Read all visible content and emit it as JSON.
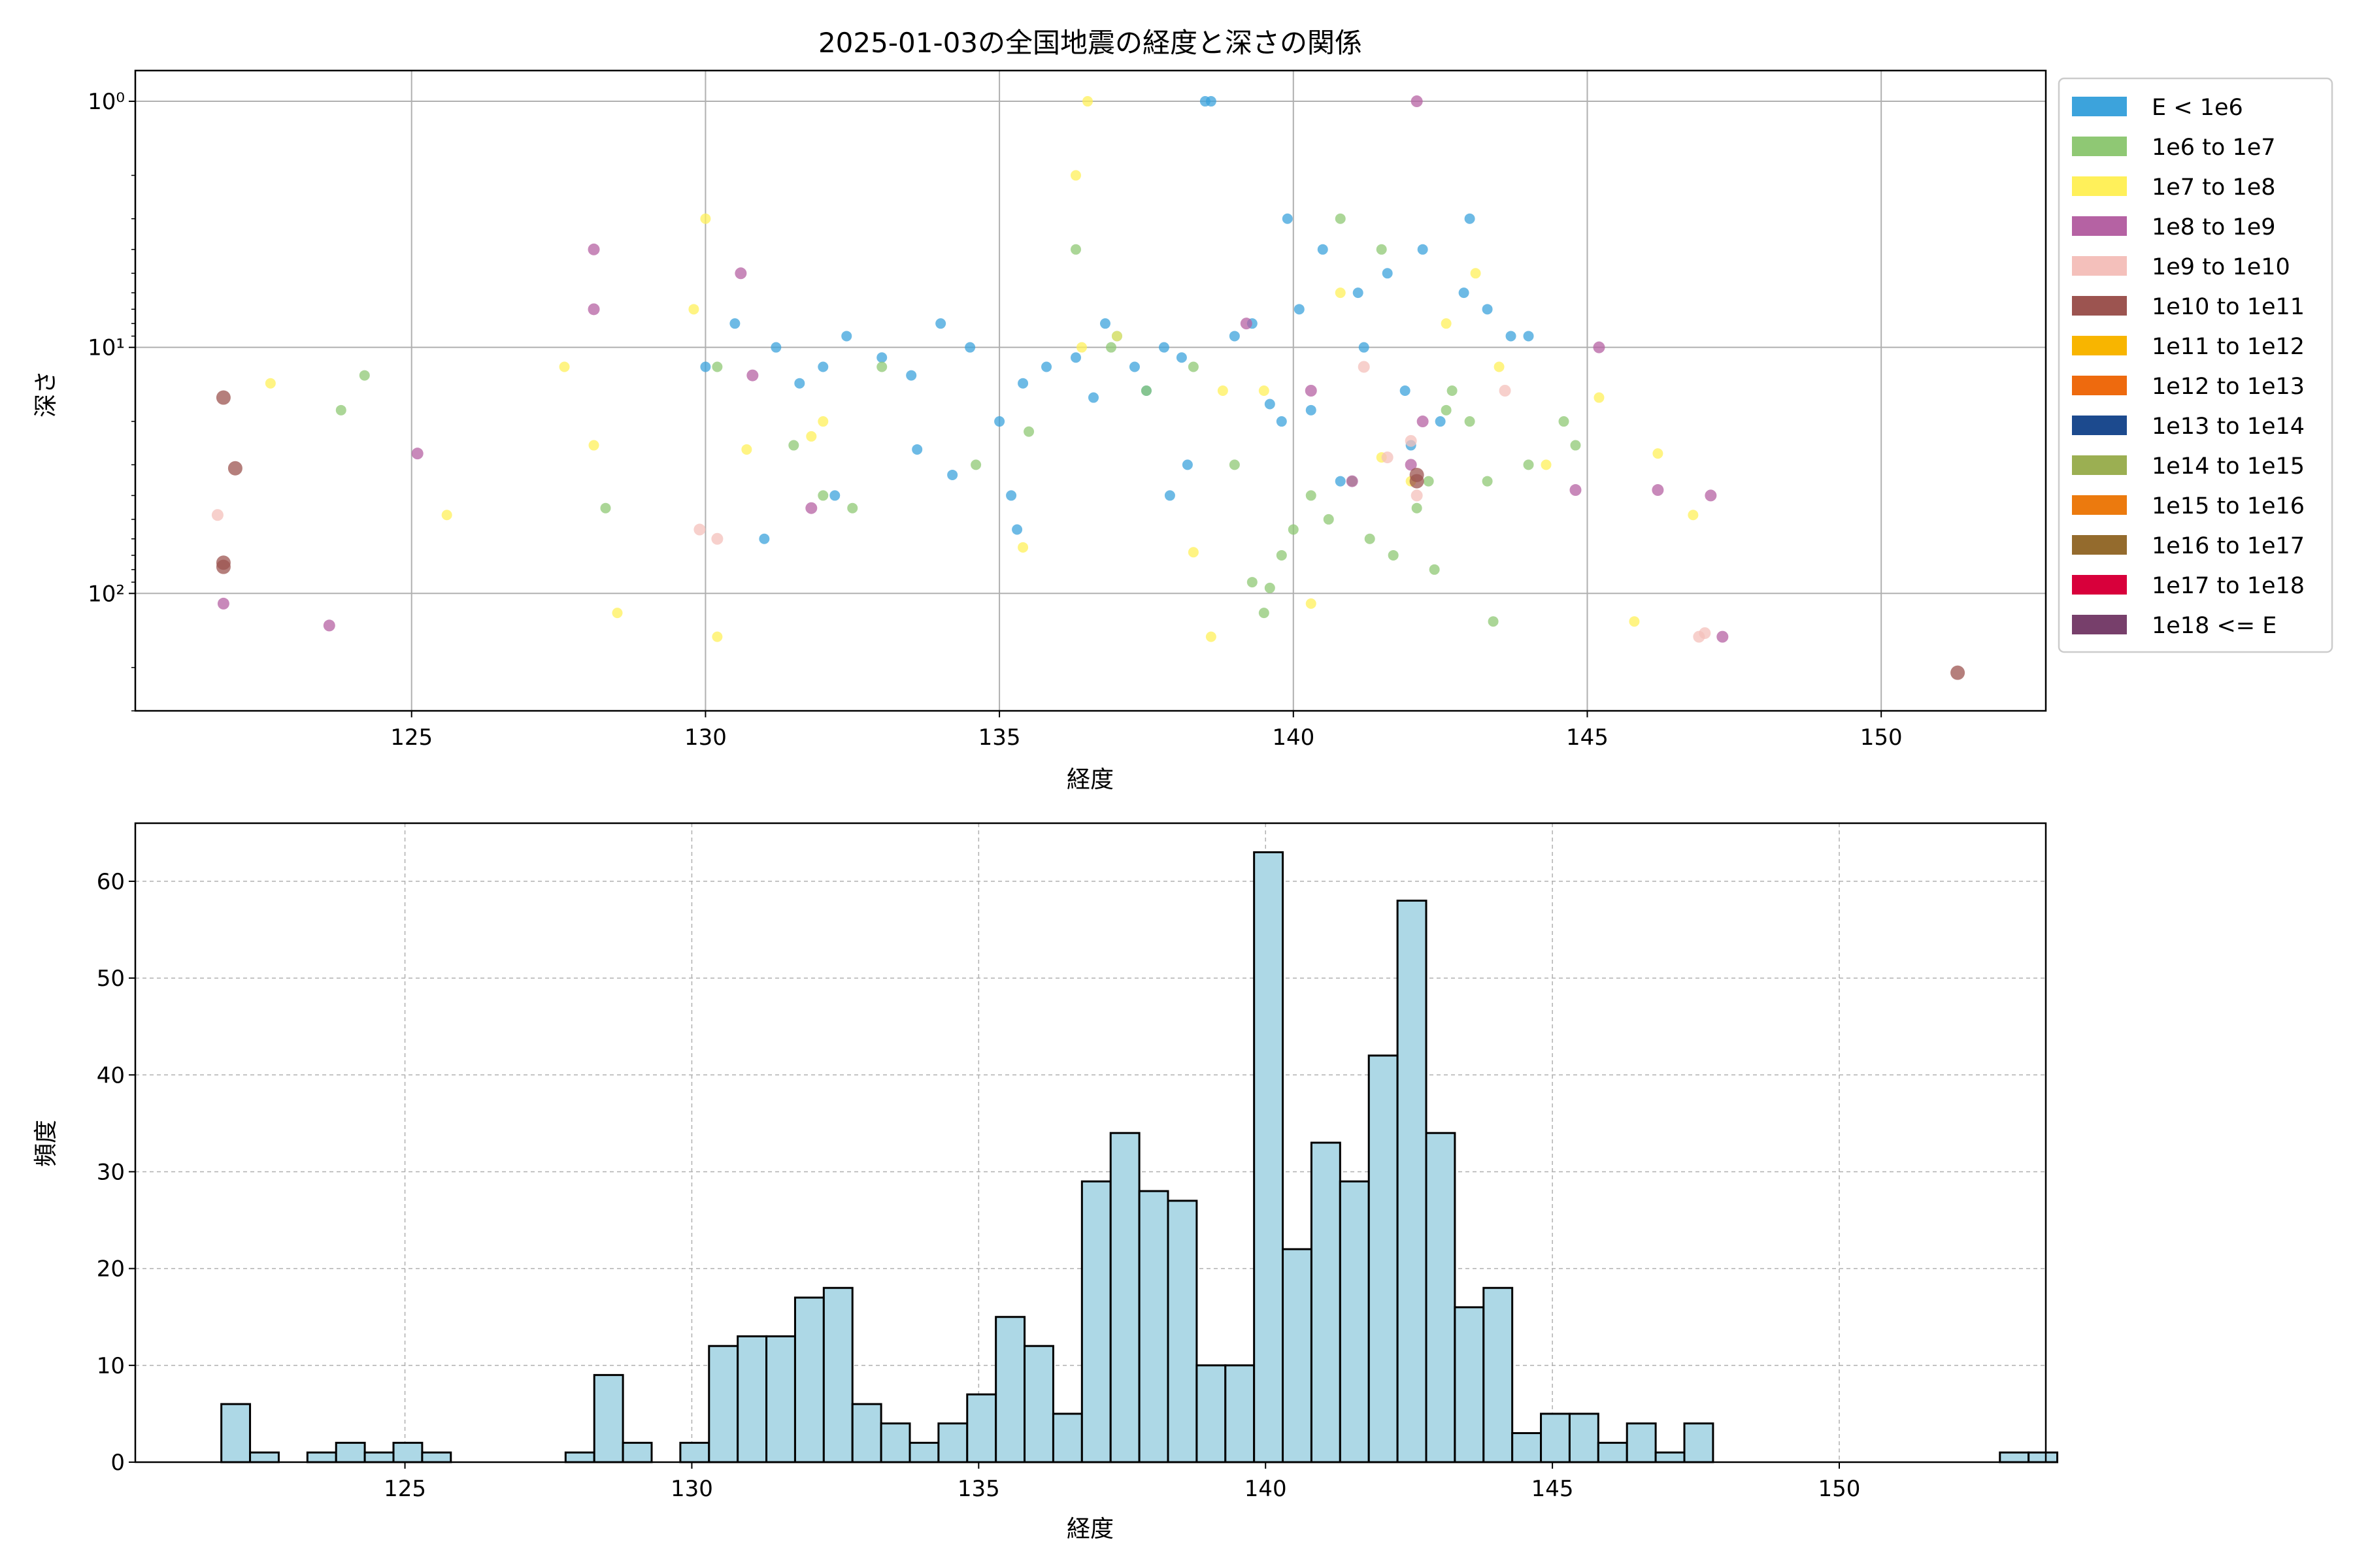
{
  "figure": {
    "title": "2025-01-03の全国地震の経度と深さの関係"
  },
  "chart_data": [
    {
      "type": "scatter",
      "title": "2025-01-03の全国地震の経度と深さの関係",
      "xlabel": "経度",
      "ylabel": "深さ",
      "xlim": [
        120.3,
        152.8
      ],
      "ylim": [
        300,
        0.75
      ],
      "yscale": "log",
      "yaxis_inverted": true,
      "grid": true,
      "legend_position": "outside-right",
      "xticks": [
        125,
        130,
        135,
        140,
        145,
        150
      ],
      "xtick_labels": [
        "125",
        "130",
        "135",
        "140",
        "145",
        "150"
      ],
      "yticks": [
        1,
        10,
        100
      ],
      "ytick_labels": [
        "10⁰",
        "10¹",
        "10²"
      ],
      "legend": [
        {
          "label": "E < 1e6",
          "color": "#3ca3dc"
        },
        {
          "label": "1e6 to 1e7",
          "color": "#8fc874"
        },
        {
          "label": "1e7 to 1e8",
          "color": "#fff05a"
        },
        {
          "label": "1e8 to 1e9",
          "color": "#b562a3"
        },
        {
          "label": "1e9 to 1e10",
          "color": "#f4c0bb"
        },
        {
          "label": "1e10 to 1e11",
          "color": "#9c5450"
        },
        {
          "label": "1e11 to 1e12",
          "color": "#f8b500"
        },
        {
          "label": "1e12 to 1e13",
          "color": "#ee6a0e"
        },
        {
          "label": "1e13 to 1e14",
          "color": "#1c4a8e"
        },
        {
          "label": "1e14 to 1e15",
          "color": "#9baf52"
        },
        {
          "label": "1e15 to 1e16",
          "color": "#ec7a0e"
        },
        {
          "label": "1e16 to 1e17",
          "color": "#946b2d"
        },
        {
          "label": "1e17 to 1e18",
          "color": "#d8003b"
        },
        {
          "label": "1e18 <= E",
          "color": "#773f6b"
        }
      ],
      "series": [
        {
          "name": "E < 1e6",
          "color": "#3ca3dc",
          "x": [
            130.5,
            131.2,
            131.6,
            132.0,
            132.4,
            133.0,
            133.5,
            134.0,
            134.5,
            135.0,
            135.2,
            135.4,
            136.3,
            136.6,
            137.0,
            137.3,
            137.5,
            137.8,
            138.1,
            138.5,
            139.0,
            139.3,
            139.6,
            139.8,
            140.1,
            140.5,
            140.8,
            141.1,
            141.6,
            142.2,
            142.9,
            143.3,
            143.7,
            144.0,
            131.0,
            132.2,
            134.2,
            135.3,
            138.2,
            139.9,
            141.2,
            142.5,
            143.0,
            130.0,
            133.6,
            136.8,
            137.9,
            138.6,
            140.3,
            141.9,
            135.8,
            142.0
          ],
          "y": [
            8,
            10,
            14,
            12,
            9,
            11,
            13,
            8,
            10,
            20,
            40,
            14,
            11,
            16,
            9,
            12,
            15,
            10,
            11,
            1,
            9,
            8,
            17,
            20,
            7,
            4,
            35,
            6,
            5,
            4,
            6,
            7,
            9,
            9,
            60,
            40,
            33,
            55,
            30,
            3,
            10,
            20,
            3,
            12,
            26,
            8,
            40,
            1,
            18,
            15,
            12,
            25
          ]
        },
        {
          "name": "1e6 to 1e7",
          "color": "#8fc874",
          "x": [
            123.8,
            124.2,
            128.3,
            130.2,
            131.5,
            132.0,
            132.5,
            133.0,
            134.6,
            135.5,
            136.3,
            136.9,
            137.5,
            138.3,
            139.0,
            139.3,
            139.6,
            139.8,
            140.0,
            140.3,
            140.6,
            141.0,
            141.3,
            141.7,
            142.1,
            142.4,
            142.7,
            143.0,
            143.3,
            144.0,
            144.6,
            144.8,
            141.5,
            142.3,
            139.5,
            140.8,
            142.6,
            143.4
          ],
          "y": [
            18,
            13,
            45,
            12,
            25,
            40,
            45,
            12,
            30,
            22,
            4,
            10,
            15,
            12,
            30,
            90,
            95,
            70,
            55,
            40,
            50,
            35,
            60,
            70,
            45,
            80,
            15,
            20,
            35,
            30,
            20,
            25,
            4,
            35,
            120,
            3,
            18,
            130
          ]
        },
        {
          "name": "1e7 to 1e8",
          "color": "#fff05a",
          "x": [
            122.6,
            125.6,
            127.6,
            128.1,
            128.5,
            129.8,
            130.2,
            130.7,
            131.8,
            132.0,
            135.4,
            136.3,
            136.5,
            137.0,
            138.3,
            138.6,
            139.5,
            140.3,
            140.8,
            141.5,
            142.0,
            142.6,
            143.1,
            143.5,
            144.3,
            145.2,
            145.8,
            146.2,
            146.8,
            130.0,
            136.4,
            138.8
          ],
          "y": [
            14,
            48,
            12,
            25,
            120,
            7,
            150,
            26,
            23,
            20,
            65,
            2,
            1,
            9,
            68,
            150,
            15,
            110,
            6,
            28,
            35,
            8,
            5,
            12,
            30,
            16,
            130,
            27,
            48,
            3,
            10,
            15
          ]
        },
        {
          "name": "1e8 to 1e9",
          "color": "#b562a3",
          "x": [
            121.8,
            123.6,
            125.1,
            128.1,
            128.1,
            130.6,
            130.8,
            131.8,
            139.2,
            140.3,
            141.0,
            142.1,
            142.2,
            144.8,
            145.2,
            146.2,
            147.1,
            147.3,
            142.0
          ],
          "y": [
            110,
            135,
            27,
            4,
            7,
            5,
            13,
            45,
            8,
            15,
            35,
            1,
            20,
            38,
            10,
            38,
            40,
            150,
            30
          ]
        },
        {
          "name": "1e9 to 1e10",
          "color": "#f4c0bb",
          "x": [
            121.7,
            129.9,
            130.2,
            141.2,
            141.6,
            142.0,
            143.6,
            146.9,
            147.0,
            142.1
          ],
          "y": [
            48,
            55,
            60,
            12,
            28,
            24,
            15,
            150,
            145,
            40
          ]
        },
        {
          "name": "1e10 to 1e11",
          "color": "#9c5450",
          "x": [
            121.8,
            121.8,
            122.0,
            121.8,
            151.3,
            142.1,
            142.1
          ],
          "y": [
            16,
            75,
            31,
            78,
            210,
            33,
            35
          ]
        }
      ]
    },
    {
      "type": "bar",
      "subtype": "histogram",
      "xlabel": "経度",
      "ylabel": "頻度",
      "xlim": [
        120.3,
        153.6
      ],
      "ylim": [
        0,
        66
      ],
      "grid": true,
      "grid_style": "dashed",
      "bar_color": "#add8e6",
      "edge_color": "#000000",
      "bin_start": 121.8,
      "bin_width": 0.5,
      "xticks": [
        125,
        130,
        135,
        140,
        145,
        150
      ],
      "xtick_labels": [
        "125",
        "130",
        "135",
        "140",
        "145",
        "150"
      ],
      "yticks": [
        0,
        10,
        20,
        30,
        40,
        50,
        60
      ],
      "ytick_labels": [
        "0",
        "10",
        "20",
        "30",
        "40",
        "50",
        "60"
      ],
      "values": [
        6,
        1,
        0,
        1,
        2,
        1,
        2,
        1,
        0,
        0,
        0,
        0,
        1,
        9,
        2,
        0,
        2,
        12,
        13,
        13,
        17,
        18,
        6,
        4,
        2,
        4,
        7,
        15,
        12,
        5,
        29,
        34,
        28,
        27,
        10,
        10,
        63,
        22,
        33,
        29,
        42,
        58,
        34,
        16,
        18,
        3,
        5,
        5,
        2,
        4,
        1,
        4,
        0,
        0,
        0,
        0,
        0,
        0,
        0,
        0,
        0,
        0,
        1,
        1
      ]
    }
  ]
}
